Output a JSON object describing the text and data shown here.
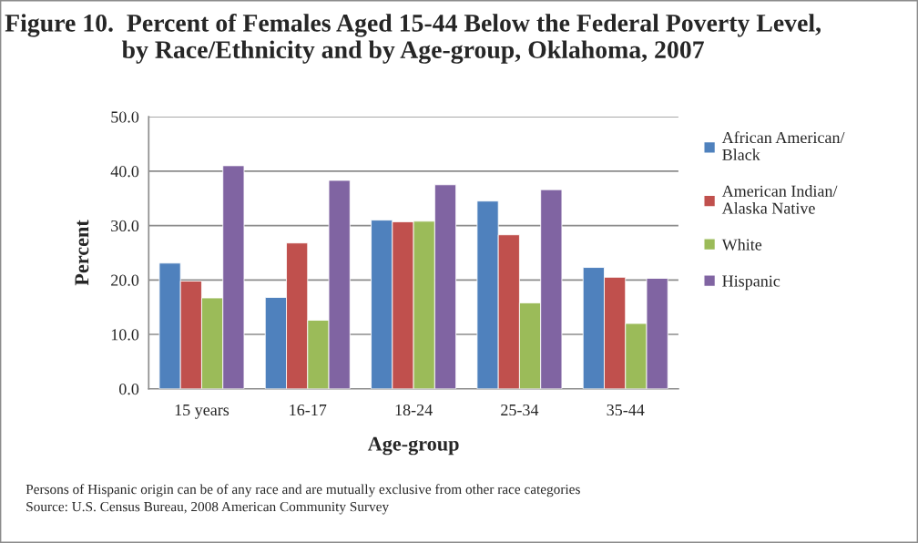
{
  "chart_data": {
    "type": "bar",
    "title": "Figure 10.  Percent of Females Aged 15-44 Below the Federal Poverty Level, by Race/Ethnicity and by Age-group, Oklahoma, 2007",
    "xlabel": "Age-group",
    "ylabel": "Percent",
    "categories": [
      "15 years",
      "16-17",
      "18-24",
      "25-34",
      "35-44"
    ],
    "series": [
      {
        "name": "African American/\nBlack",
        "color": "#4f81bd",
        "values": [
          23.1,
          16.8,
          31.0,
          34.5,
          22.3
        ]
      },
      {
        "name": "American Indian/\nAlaska Native",
        "color": "#c0504d",
        "values": [
          19.8,
          26.8,
          30.7,
          28.3,
          20.5
        ]
      },
      {
        "name": "White",
        "color": "#9bbb59",
        "values": [
          16.7,
          12.6,
          30.8,
          15.8,
          12.0
        ]
      },
      {
        "name": "Hispanic",
        "color": "#8064a2",
        "values": [
          41.0,
          38.3,
          37.5,
          36.6,
          20.3
        ]
      }
    ],
    "ylim": [
      0,
      50
    ],
    "yticks": [
      {
        "value": 0,
        "label": "0.0"
      },
      {
        "value": 10,
        "label": "10.0"
      },
      {
        "value": 20,
        "label": "20.0"
      },
      {
        "value": 30,
        "label": "30.0"
      },
      {
        "value": 40,
        "label": "40.0"
      },
      {
        "value": 50,
        "label": "50.0"
      }
    ],
    "grid": "y",
    "legend": "right",
    "annotations": [
      "Persons of Hispanic origin can be of any race and are mutually exclusive from other race categories",
      "Source: U.S. Census Bureau, 2008 American Community Survey"
    ]
  }
}
